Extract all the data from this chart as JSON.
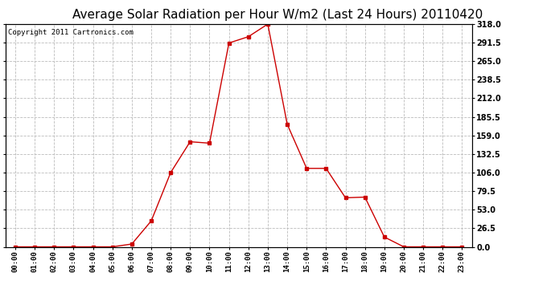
{
  "title": "Average Solar Radiation per Hour W/m2 (Last 24 Hours) 20110420",
  "copyright": "Copyright 2011 Cartronics.com",
  "hours": [
    "00:00",
    "01:00",
    "02:00",
    "03:00",
    "04:00",
    "05:00",
    "06:00",
    "07:00",
    "08:00",
    "09:00",
    "10:00",
    "11:00",
    "12:00",
    "13:00",
    "14:00",
    "15:00",
    "16:00",
    "17:00",
    "18:00",
    "19:00",
    "20:00",
    "21:00",
    "22:00",
    "23:00"
  ],
  "values": [
    0,
    0,
    0,
    0,
    0,
    0,
    4,
    37,
    106,
    150,
    148,
    291,
    300,
    318,
    175,
    112,
    112,
    70,
    71,
    14,
    0,
    0,
    0,
    0
  ],
  "line_color": "#cc0000",
  "marker": "s",
  "marker_size": 2.5,
  "background_color": "#ffffff",
  "grid_color": "#bbbbbb",
  "y_ticks": [
    0.0,
    26.5,
    53.0,
    79.5,
    106.0,
    132.5,
    159.0,
    185.5,
    212.0,
    238.5,
    265.0,
    291.5,
    318.0
  ],
  "ylim": [
    0,
    318.0
  ],
  "title_fontsize": 11,
  "copyright_fontsize": 6.5
}
